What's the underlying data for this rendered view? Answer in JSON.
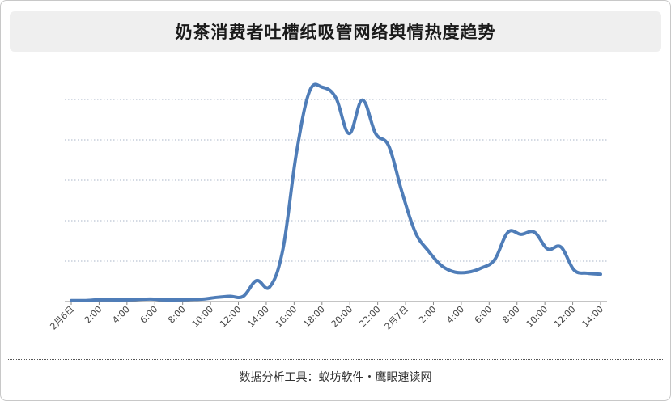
{
  "title": "奶茶消费者吐槽纸吸管网络舆情热度趋势",
  "footer": "数据分析工具：蚁坊软件・鹰眼速读网",
  "colors": {
    "line": "#4f7db8",
    "grid": "#aab6c8",
    "axis": "#888888"
  },
  "chart_data": {
    "type": "line",
    "title": "奶茶消费者吐槽纸吸管网络舆情热度趋势",
    "xlabel": "",
    "ylabel": "",
    "grid": true,
    "legend": "none",
    "x_labels": [
      "2月6日",
      "2:00",
      "4:00",
      "6:00",
      "8:00",
      "10:00",
      "12:00",
      "14:00",
      "16:00",
      "18:00",
      "20:00",
      "22:00",
      "2月7日",
      "2:00",
      "4:00",
      "6:00",
      "8:00",
      "10:00",
      "12:00",
      "14:00"
    ],
    "ylim": [
      0,
      100
    ],
    "series": [
      {
        "values": [
          [
            0,
            0.5
          ],
          [
            1,
            0.5
          ],
          [
            2,
            0.8
          ],
          [
            3,
            0.8
          ],
          [
            4,
            0.8
          ],
          [
            5,
            1.0
          ],
          [
            6,
            1.2
          ],
          [
            7,
            0.8
          ],
          [
            8,
            0.8
          ],
          [
            9,
            1.0
          ],
          [
            10,
            1.2
          ],
          [
            11,
            2.0
          ],
          [
            12,
            2.5
          ],
          [
            13,
            2.5
          ],
          [
            14,
            10.0
          ],
          [
            15,
            7.0
          ],
          [
            16,
            25.0
          ],
          [
            17,
            70.0
          ],
          [
            18,
            100.0
          ],
          [
            19,
            102.0
          ],
          [
            20,
            97.0
          ],
          [
            21,
            80.0
          ],
          [
            22,
            96.0
          ],
          [
            23,
            80.0
          ],
          [
            24,
            74.0
          ],
          [
            25,
            52.0
          ],
          [
            26,
            33.0
          ],
          [
            27,
            24.0
          ],
          [
            28,
            17.0
          ],
          [
            29,
            14.0
          ],
          [
            30,
            14.0
          ],
          [
            31,
            16.0
          ],
          [
            32,
            20.0
          ],
          [
            33,
            33.0
          ],
          [
            34,
            32.0
          ],
          [
            35,
            33.0
          ],
          [
            36,
            25.0
          ],
          [
            37,
            26.0
          ],
          [
            38,
            15.0
          ],
          [
            39,
            13.5
          ],
          [
            40,
            13.0
          ]
        ]
      }
    ]
  }
}
